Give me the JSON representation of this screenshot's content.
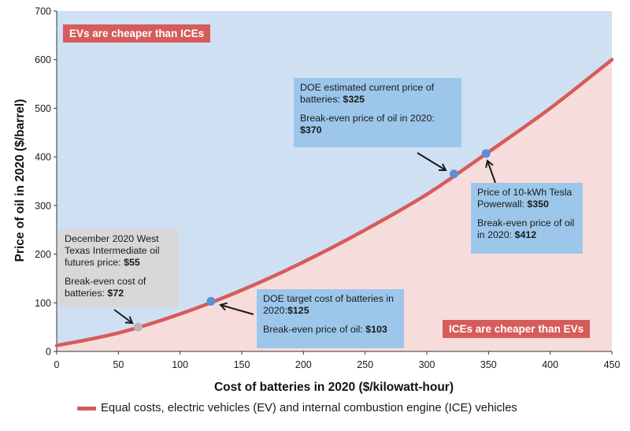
{
  "chart_data": {
    "type": "area",
    "xlabel": "Cost of batteries in 2020 ($/kilowatt-hour)",
    "ylabel": "Price of oil in 2020 ($/barrel)",
    "xlim": [
      0,
      450
    ],
    "ylim": [
      0,
      700
    ],
    "x_ticks": [
      "0",
      "50",
      "100",
      "150",
      "200",
      "250",
      "300",
      "350",
      "400",
      "450"
    ],
    "y_ticks": [
      "0",
      "100",
      "200",
      "300",
      "400",
      "500",
      "600",
      "700"
    ],
    "grid": false,
    "legend_position": "bottom",
    "series": [
      {
        "name": "Equal costs, electric vehicles (EV) and internal combustion engine (ICE) vehicles",
        "x": [
          0,
          50,
          100,
          150,
          200,
          250,
          300,
          350,
          400,
          450
        ],
        "y": [
          12,
          38,
          77,
          126,
          184,
          250,
          323,
          410,
          500,
          600
        ]
      }
    ],
    "points": [
      {
        "x": 66,
        "y": 50,
        "color": "#b5b5b5"
      },
      {
        "x": 125,
        "y": 103,
        "color": "#5b8fd4"
      },
      {
        "x": 322,
        "y": 365,
        "color": "#5b8fd4"
      },
      {
        "x": 348,
        "y": 407,
        "color": "#5b8fd4"
      }
    ],
    "regions": {
      "above": "EVs are cheaper than ICEs",
      "below": "ICEs are cheaper than EVs"
    },
    "annotations": [
      {
        "id": "wti",
        "lines": [
          {
            "text": "December 2020 West Texas Intermediate oil futures price: ",
            "bold": "$55"
          },
          {
            "text": "Break-even cost of batteries: ",
            "bold": "$72"
          }
        ]
      },
      {
        "id": "doe-target",
        "lines": [
          {
            "text": "DOE target cost of batteries in 2020:",
            "bold": "$125"
          },
          {
            "text": "Break-even price of oil:  ",
            "bold": "$103"
          }
        ]
      },
      {
        "id": "doe-current",
        "lines": [
          {
            "text": "DOE estimated current price of batteries: ",
            "bold": "$325"
          },
          {
            "text": "Break-even price of oil in 2020: ",
            "bold": "$370"
          }
        ]
      },
      {
        "id": "tesla",
        "lines": [
          {
            "text": "Price of 10-kWh Tesla Powerwall: ",
            "bold": "$350"
          },
          {
            "text": "Break-even price of oil in 2020: ",
            "bold": "$412"
          }
        ]
      }
    ]
  },
  "colors": {
    "ev_region": "#cfe0f3",
    "ice_region": "#f7dcdc",
    "curve": "#d65c5a",
    "label_bg": "#d65c5a",
    "note_blue": "#9cc7ea",
    "note_gray": "#d8d8d8"
  }
}
